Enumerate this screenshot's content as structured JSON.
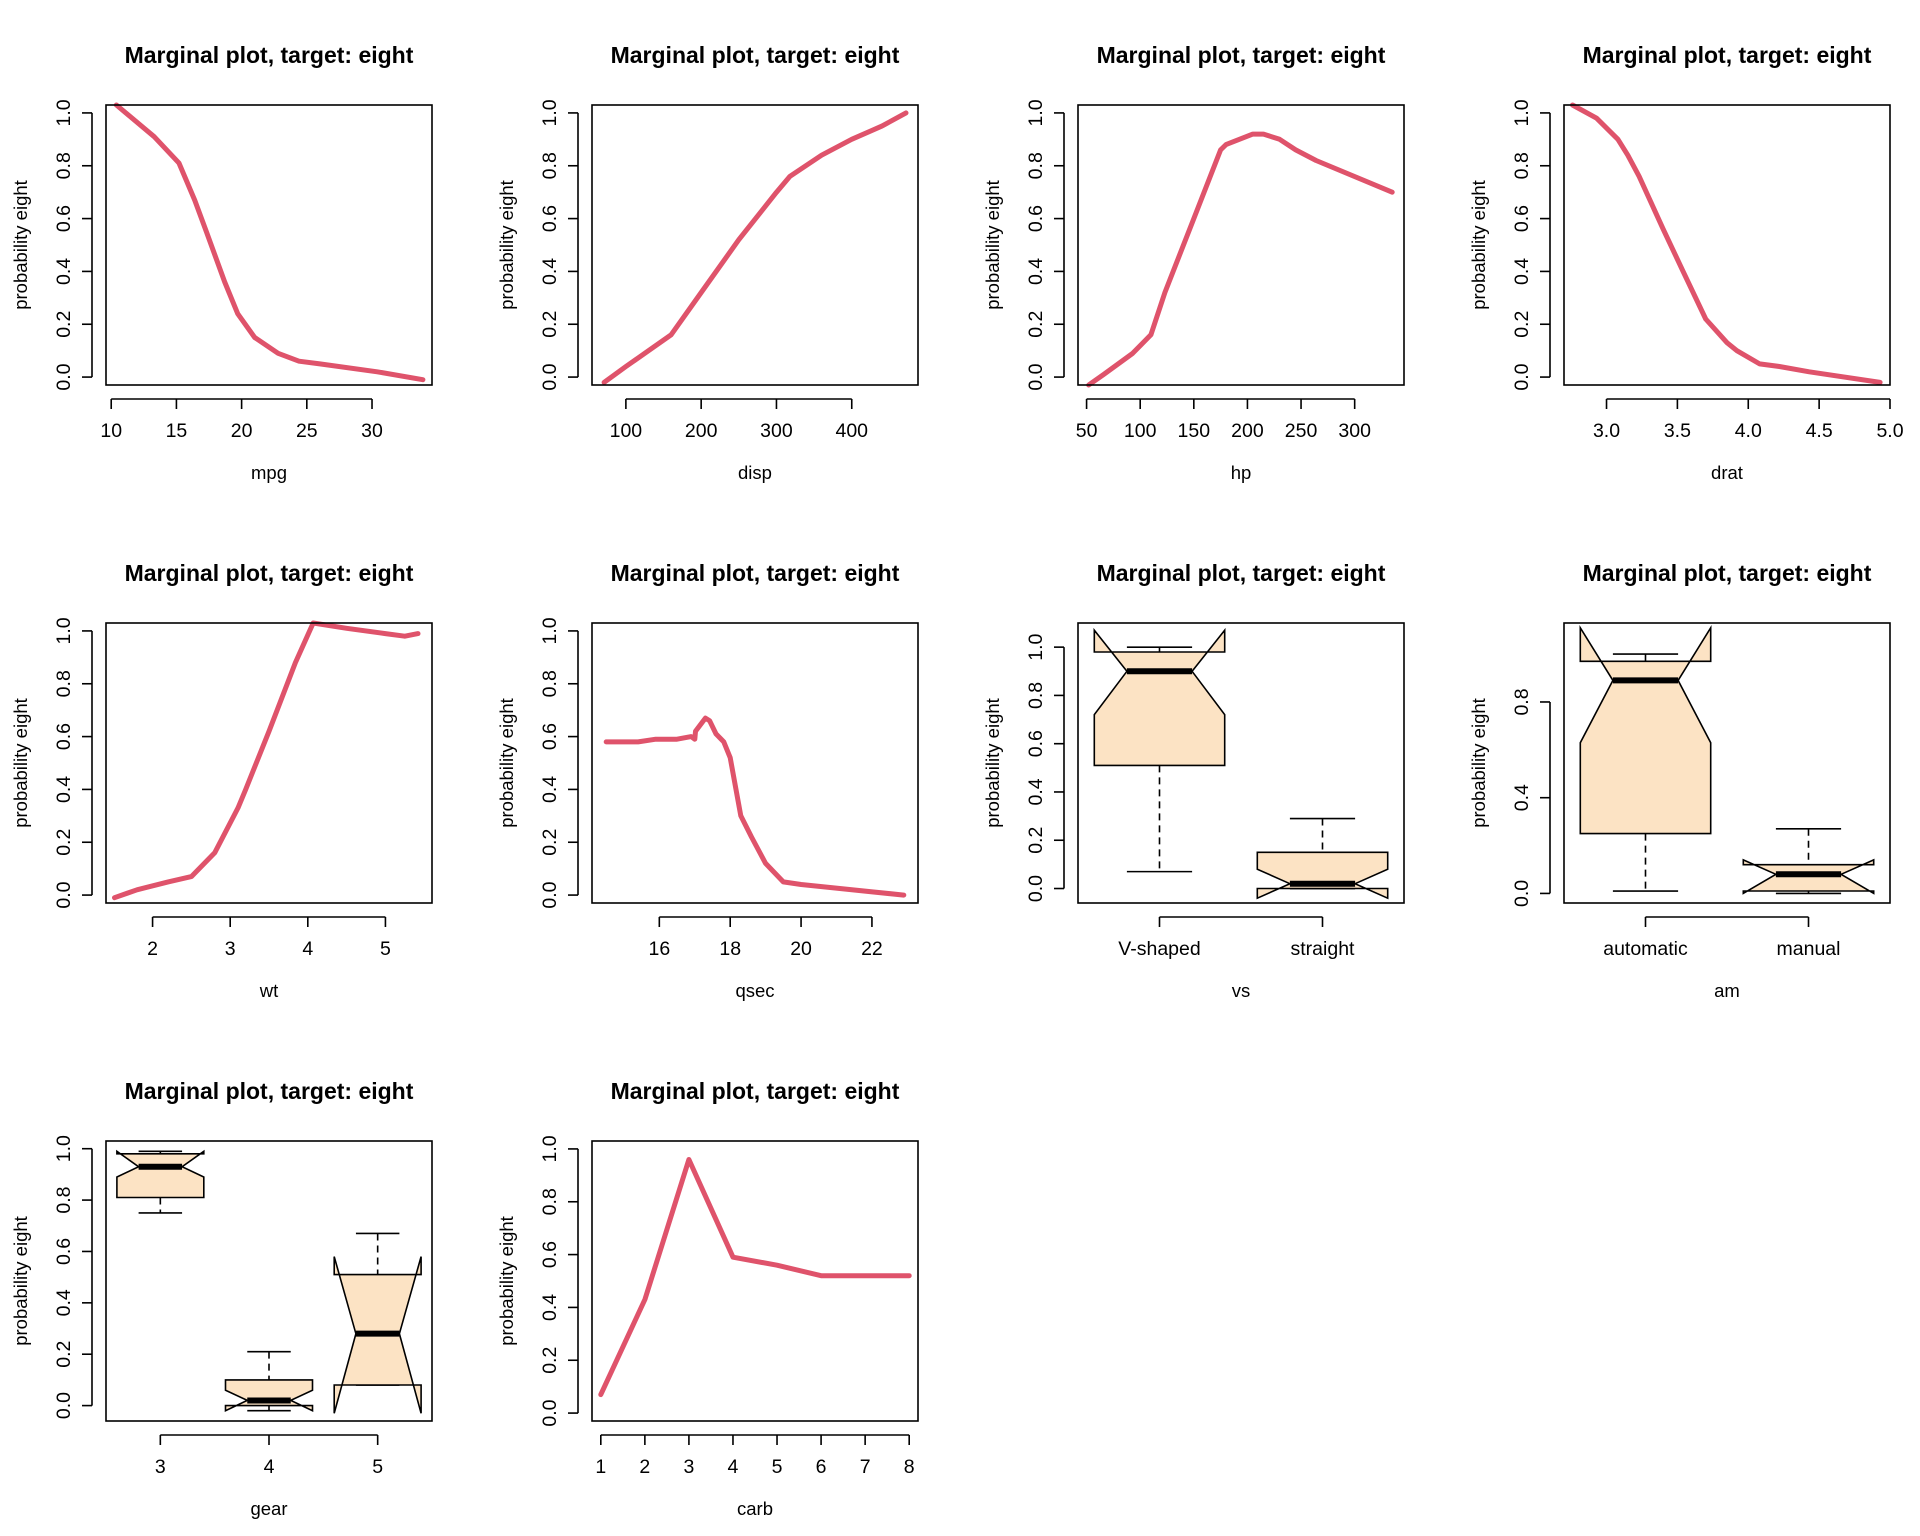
{
  "colors": {
    "line": "#DF536B",
    "box_fill": "#FCE3C4",
    "ink": "#000000"
  },
  "chart_data": [
    {
      "type": "line",
      "title": "Marginal plot, target: eight",
      "xlabel": "mpg",
      "ylabel": "probability eight",
      "xlim": [
        9.6,
        34.6
      ],
      "ylim": [
        -0.03,
        1.03
      ],
      "xticks": [
        10,
        15,
        20,
        25,
        30
      ],
      "yticks": [
        0.0,
        0.2,
        0.4,
        0.6,
        0.8,
        1.0
      ],
      "x": [
        10.4,
        13.3,
        15.2,
        16.4,
        17.3,
        18.7,
        19.7,
        21.0,
        22.8,
        24.4,
        26.0,
        30.4,
        33.9
      ],
      "y": [
        1.03,
        0.91,
        0.81,
        0.67,
        0.55,
        0.36,
        0.24,
        0.15,
        0.09,
        0.06,
        0.05,
        0.02,
        -0.01
      ]
    },
    {
      "type": "line",
      "title": "Marginal plot, target: eight",
      "xlabel": "disp",
      "ylabel": "probability eight",
      "xlim": [
        55,
        488
      ],
      "ylim": [
        -0.03,
        1.03
      ],
      "xticks": [
        100,
        200,
        300,
        400
      ],
      "yticks": [
        0.0,
        0.2,
        0.4,
        0.6,
        0.8,
        1.0
      ],
      "x": [
        71.1,
        100,
        130,
        160,
        200,
        250,
        300,
        318,
        360,
        400,
        440,
        472
      ],
      "y": [
        -0.02,
        0.04,
        0.1,
        0.16,
        0.32,
        0.52,
        0.7,
        0.76,
        0.84,
        0.9,
        0.95,
        1.0
      ]
    },
    {
      "type": "line",
      "title": "Marginal plot, target: eight",
      "xlabel": "hp",
      "ylabel": "probability eight",
      "xlim": [
        42,
        346
      ],
      "ylim": [
        -0.03,
        1.03
      ],
      "xticks": [
        50,
        100,
        150,
        200,
        250,
        300
      ],
      "yticks": [
        0.0,
        0.2,
        0.4,
        0.6,
        0.8,
        1.0
      ],
      "x": [
        52,
        66,
        93,
        110,
        123,
        150,
        175,
        180,
        205,
        215,
        230,
        245,
        264,
        335
      ],
      "y": [
        -0.03,
        0.01,
        0.09,
        0.16,
        0.32,
        0.6,
        0.86,
        0.88,
        0.92,
        0.92,
        0.9,
        0.86,
        0.82,
        0.7
      ]
    },
    {
      "type": "line",
      "title": "Marginal plot, target: eight",
      "xlabel": "drat",
      "ylabel": "probability eight",
      "xlim": [
        2.7,
        5.0
      ],
      "ylim": [
        -0.03,
        1.03
      ],
      "xticks": [
        3.0,
        3.5,
        4.0,
        4.5,
        5.0
      ],
      "yticks": [
        0.0,
        0.2,
        0.4,
        0.6,
        0.8,
        1.0
      ],
      "x": [
        2.76,
        2.93,
        3.08,
        3.15,
        3.23,
        3.4,
        3.54,
        3.7,
        3.85,
        3.92,
        4.08,
        4.22,
        4.43,
        4.93
      ],
      "y": [
        1.03,
        0.98,
        0.9,
        0.84,
        0.76,
        0.56,
        0.4,
        0.22,
        0.13,
        0.1,
        0.05,
        0.04,
        0.02,
        -0.02
      ]
    },
    {
      "type": "line",
      "title": "Marginal plot, target: eight",
      "xlabel": "wt",
      "ylabel": "probability eight",
      "xlim": [
        1.4,
        5.6
      ],
      "ylim": [
        -0.03,
        1.03
      ],
      "xticks": [
        2,
        3,
        4,
        5
      ],
      "yticks": [
        0.0,
        0.2,
        0.4,
        0.6,
        0.8,
        1.0
      ],
      "x": [
        1.51,
        1.8,
        2.2,
        2.5,
        2.8,
        3.1,
        3.2,
        3.5,
        3.84,
        4.07,
        4.5,
        5.0,
        5.25,
        5.42
      ],
      "y": [
        -0.01,
        0.02,
        0.05,
        0.07,
        0.16,
        0.33,
        0.4,
        0.62,
        0.88,
        1.03,
        1.01,
        0.99,
        0.98,
        0.99
      ]
    },
    {
      "type": "line",
      "title": "Marginal plot, target: eight",
      "xlabel": "qsec",
      "ylabel": "probability eight",
      "xlim": [
        14.1,
        23.3
      ],
      "ylim": [
        -0.03,
        1.03
      ],
      "xticks": [
        16,
        18,
        20,
        22
      ],
      "yticks": [
        0.0,
        0.2,
        0.4,
        0.6,
        0.8,
        1.0
      ],
      "x": [
        14.5,
        15.4,
        15.9,
        16.5,
        16.9,
        17.0,
        17.02,
        17.3,
        17.42,
        17.6,
        17.82,
        18.0,
        18.3,
        18.6,
        19.0,
        19.5,
        20.0,
        22.9
      ],
      "y": [
        0.58,
        0.58,
        0.59,
        0.59,
        0.6,
        0.59,
        0.62,
        0.67,
        0.66,
        0.61,
        0.58,
        0.52,
        0.3,
        0.22,
        0.12,
        0.05,
        0.04,
        0.0
      ]
    },
    {
      "type": "box",
      "title": "Marginal plot, target: eight",
      "xlabel": "vs",
      "ylabel": "probability eight",
      "ylim": [
        -0.06,
        1.1
      ],
      "yticks": [
        0.0,
        0.2,
        0.4,
        0.6,
        0.8,
        1.0
      ],
      "categories": [
        "V-shaped",
        "straight"
      ],
      "boxes": [
        {
          "low": 0.07,
          "q1": 0.51,
          "median": 0.9,
          "q3": 0.98,
          "high": 1.0,
          "notch_low": 0.72,
          "notch_high": 1.07
        },
        {
          "low": 0.0,
          "q1": 0.0,
          "median": 0.02,
          "q3": 0.15,
          "high": 0.29,
          "notch_low": -0.04,
          "notch_high": 0.08
        }
      ]
    },
    {
      "type": "box",
      "title": "Marginal plot, target: eight",
      "xlabel": "am",
      "ylabel": "probability eight",
      "ylim": [
        -0.04,
        1.13
      ],
      "yticks": [
        0.0,
        0.4,
        0.8
      ],
      "categories": [
        "automatic",
        "manual"
      ],
      "boxes": [
        {
          "low": 0.01,
          "q1": 0.25,
          "median": 0.89,
          "q3": 0.97,
          "high": 1.0,
          "notch_low": 0.63,
          "notch_high": 1.11
        },
        {
          "low": 0.0,
          "q1": 0.01,
          "median": 0.08,
          "q3": 0.12,
          "high": 0.27,
          "notch_low": 0.0,
          "notch_high": 0.14
        }
      ]
    },
    {
      "type": "box",
      "title": "Marginal plot, target: eight",
      "xlabel": "gear",
      "ylabel": "probability eight",
      "ylim": [
        -0.06,
        1.03
      ],
      "yticks": [
        0.0,
        0.2,
        0.4,
        0.6,
        0.8,
        1.0
      ],
      "categories": [
        "3",
        "4",
        "5"
      ],
      "boxes": [
        {
          "low": 0.75,
          "q1": 0.81,
          "median": 0.93,
          "q3": 0.98,
          "high": 0.99,
          "notch_low": 0.89,
          "notch_high": 0.99
        },
        {
          "low": -0.02,
          "q1": 0.0,
          "median": 0.02,
          "q3": 0.1,
          "high": 0.21,
          "notch_low": -0.02,
          "notch_high": 0.06
        },
        {
          "low": 0.08,
          "q1": 0.08,
          "median": 0.28,
          "q3": 0.51,
          "high": 0.67,
          "notch_low": -0.03,
          "notch_high": 0.58
        }
      ]
    },
    {
      "type": "line",
      "title": "Marginal plot, target: eight",
      "xlabel": "carb",
      "ylabel": "probability eight",
      "xlim": [
        0.8,
        8.2
      ],
      "ylim": [
        -0.03,
        1.03
      ],
      "xticks": [
        1,
        2,
        3,
        4,
        5,
        6,
        7,
        8
      ],
      "yticks": [
        0.0,
        0.2,
        0.4,
        0.6,
        0.8,
        1.0
      ],
      "x": [
        1,
        2,
        3,
        4,
        5,
        6,
        7,
        8
      ],
      "y": [
        0.07,
        0.43,
        0.96,
        0.59,
        0.56,
        0.52,
        0.52,
        0.52
      ]
    }
  ]
}
